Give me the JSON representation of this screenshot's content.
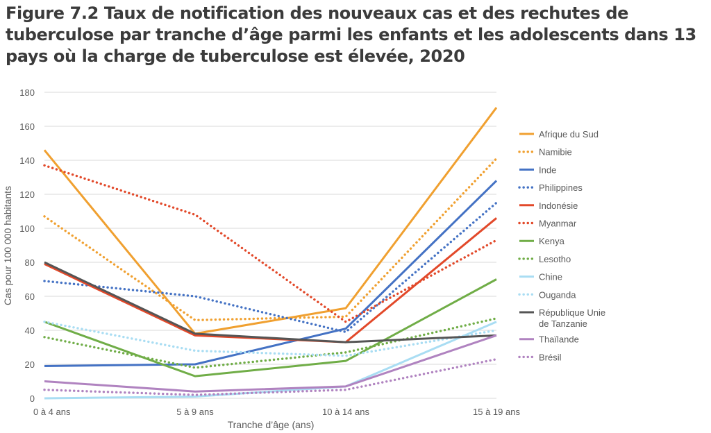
{
  "figure": {
    "title": "Figure 7.2 Taux de notification des nouveaux cas et des rechutes de tuberculose par tranche d’âge parmi les enfants et les adolescents dans 13 pays où la charge de tuberculose est élevée, 2020"
  },
  "chart_data": {
    "type": "line",
    "title": "Figure 7.2 Taux de notification des nouveaux cas et des rechutes de tuberculose par tranche d’âge parmi les enfants et les adolescents dans 13 pays où la charge de tuberculose est élevée, 2020",
    "xlabel": "Tranche d’âge (ans)",
    "ylabel": "Cas pour 100 000 habitants",
    "categories": [
      "0 à 4 ans",
      "5 à 9 ans",
      "10 à 14 ans",
      "15 à 19 ans"
    ],
    "ylim": [
      0,
      180
    ],
    "yticks": [
      0,
      20,
      40,
      60,
      80,
      100,
      120,
      140,
      160,
      180
    ],
    "grid": true,
    "legend_position": "right",
    "series": [
      {
        "name": "Afrique du Sud",
        "values": [
          146,
          38,
          53,
          171
        ],
        "color": "#f0a030",
        "dash": "solid"
      },
      {
        "name": "Namibie",
        "values": [
          107,
          46,
          48,
          141
        ],
        "color": "#f0a030",
        "dash": "dotted"
      },
      {
        "name": "Inde",
        "values": [
          19,
          20,
          41,
          128
        ],
        "color": "#4472c4",
        "dash": "solid"
      },
      {
        "name": "Philippines",
        "values": [
          69,
          60,
          39,
          115
        ],
        "color": "#4472c4",
        "dash": "dotted"
      },
      {
        "name": "Indonésie",
        "values": [
          79,
          37,
          33,
          106
        ],
        "color": "#e2492a",
        "dash": "solid"
      },
      {
        "name": "Myanmar",
        "values": [
          137,
          108,
          45,
          93
        ],
        "color": "#e2492a",
        "dash": "dotted"
      },
      {
        "name": "Kenya",
        "values": [
          45,
          13,
          22,
          70
        ],
        "color": "#70ad47",
        "dash": "solid"
      },
      {
        "name": "Lesotho",
        "values": [
          36,
          18,
          27,
          47
        ],
        "color": "#70ad47",
        "dash": "dotted"
      },
      {
        "name": "Chine",
        "values": [
          0,
          1,
          7,
          45
        ],
        "color": "#a9ddf3",
        "dash": "solid"
      },
      {
        "name": "Ouganda",
        "values": [
          45,
          28,
          25,
          40
        ],
        "color": "#a9ddf3",
        "dash": "dotted"
      },
      {
        "name": "République Unie de Tanzanie",
        "legend_lines": [
          "République Unie",
          "de Tanzanie"
        ],
        "values": [
          80,
          38,
          33,
          37
        ],
        "color": "#555555",
        "dash": "solid"
      },
      {
        "name": "Thaïlande",
        "values": [
          10,
          4,
          7,
          37
        ],
        "color": "#b083c0",
        "dash": "solid"
      },
      {
        "name": "Brésil",
        "values": [
          5,
          2,
          5,
          23
        ],
        "color": "#b083c0",
        "dash": "dotted"
      }
    ]
  }
}
